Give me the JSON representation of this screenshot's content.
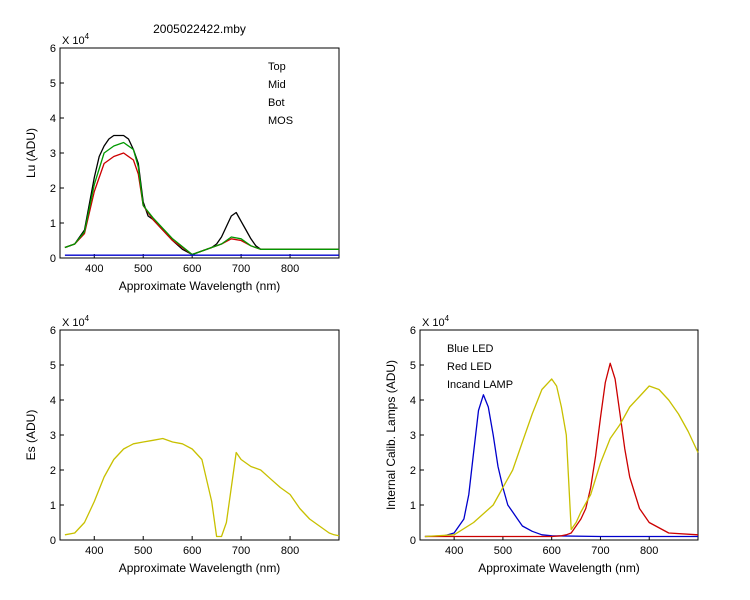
{
  "chart_data": [
    {
      "type": "line",
      "title": "2005022422.mby",
      "xlabel": "Approximate Wavelength (nm)",
      "ylabel": "Lu (ADU)",
      "y_multiplier": "X 10",
      "y_exponent": "4",
      "xlim": [
        330,
        900
      ],
      "ylim": [
        0,
        6
      ],
      "xticks": [
        400,
        500,
        600,
        700,
        800
      ],
      "yticks": [
        0,
        1,
        2,
        3,
        4,
        5,
        6
      ],
      "legend": "top-right",
      "series": [
        {
          "name": "Top",
          "color": "#000000",
          "x": [
            340,
            360,
            380,
            400,
            410,
            420,
            430,
            440,
            450,
            460,
            470,
            480,
            490,
            500,
            510,
            520,
            540,
            560,
            580,
            600,
            640,
            650,
            660,
            670,
            680,
            690,
            700,
            710,
            720,
            730,
            740,
            760,
            800,
            900
          ],
          "y": [
            0.3,
            0.4,
            0.8,
            2.3,
            2.9,
            3.2,
            3.4,
            3.5,
            3.5,
            3.5,
            3.4,
            3.1,
            2.7,
            1.6,
            1.2,
            1.1,
            0.8,
            0.5,
            0.25,
            0.1,
            0.3,
            0.4,
            0.6,
            0.9,
            1.2,
            1.3,
            1.05,
            0.8,
            0.55,
            0.35,
            0.25,
            0.25,
            0.25,
            0.25
          ]
        },
        {
          "name": "Mid",
          "color": "#cc0000",
          "x": [
            340,
            360,
            380,
            400,
            420,
            440,
            460,
            480,
            490,
            500,
            520,
            560,
            600,
            640,
            660,
            680,
            700,
            720,
            740,
            760,
            800,
            900
          ],
          "y": [
            0.3,
            0.4,
            0.7,
            1.9,
            2.7,
            2.9,
            3.0,
            2.8,
            2.4,
            1.5,
            1.1,
            0.5,
            0.1,
            0.3,
            0.4,
            0.55,
            0.5,
            0.35,
            0.25,
            0.25,
            0.25,
            0.25
          ]
        },
        {
          "name": "Bot",
          "color": "#009900",
          "x": [
            340,
            360,
            380,
            400,
            420,
            440,
            460,
            480,
            490,
            500,
            520,
            560,
            600,
            640,
            660,
            680,
            700,
            720,
            740,
            760,
            800,
            900
          ],
          "y": [
            0.3,
            0.4,
            0.75,
            2.1,
            3.0,
            3.2,
            3.3,
            3.1,
            2.6,
            1.5,
            1.15,
            0.55,
            0.1,
            0.3,
            0.4,
            0.6,
            0.55,
            0.35,
            0.25,
            0.25,
            0.25,
            0.25
          ]
        },
        {
          "name": "MOS",
          "color": "#0000cc",
          "x": [
            340,
            900
          ],
          "y": [
            0.08,
            0.08
          ]
        }
      ]
    },
    {
      "type": "line",
      "title": "",
      "xlabel": "Approximate Wavelength (nm)",
      "ylabel": "Es (ADU)",
      "y_multiplier": "X 10",
      "y_exponent": "4",
      "xlim": [
        330,
        900
      ],
      "ylim": [
        0,
        6
      ],
      "xticks": [
        400,
        500,
        600,
        700,
        800
      ],
      "yticks": [
        0,
        1,
        2,
        3,
        4,
        5,
        6
      ],
      "series": [
        {
          "name": "",
          "color": "#c8c000",
          "x": [
            340,
            360,
            380,
            400,
            420,
            440,
            460,
            480,
            500,
            520,
            540,
            560,
            580,
            600,
            620,
            640,
            650,
            660,
            670,
            680,
            690,
            700,
            720,
            740,
            760,
            780,
            800,
            820,
            840,
            860,
            880,
            890,
            900
          ],
          "y": [
            0.15,
            0.2,
            0.5,
            1.1,
            1.8,
            2.3,
            2.6,
            2.75,
            2.8,
            2.85,
            2.9,
            2.8,
            2.75,
            2.6,
            2.3,
            1.1,
            0.1,
            0.1,
            0.5,
            1.5,
            2.5,
            2.3,
            2.1,
            2.0,
            1.75,
            1.5,
            1.3,
            0.9,
            0.6,
            0.4,
            0.2,
            0.15,
            0.12
          ]
        }
      ]
    },
    {
      "type": "line",
      "title": "",
      "xlabel": "Approximate Wavelength (nm)",
      "ylabel": "Internal Calib. Lamps (ADU)",
      "y_multiplier": "X 10",
      "y_exponent": "4",
      "xlim": [
        330,
        900
      ],
      "ylim": [
        0,
        6
      ],
      "xticks": [
        400,
        500,
        600,
        700,
        800
      ],
      "yticks": [
        0,
        1,
        2,
        3,
        4,
        5,
        6
      ],
      "legend": "top-left",
      "series": [
        {
          "name": "Blue LED",
          "color": "#0000cc",
          "x": [
            340,
            380,
            400,
            420,
            430,
            440,
            450,
            460,
            470,
            480,
            490,
            500,
            510,
            520,
            530,
            540,
            560,
            580,
            600,
            700,
            800,
            900
          ],
          "y": [
            0.1,
            0.12,
            0.2,
            0.6,
            1.3,
            2.5,
            3.7,
            4.15,
            3.8,
            3.0,
            2.1,
            1.5,
            1.0,
            0.8,
            0.6,
            0.4,
            0.25,
            0.15,
            0.12,
            0.1,
            0.1,
            0.1
          ]
        },
        {
          "name": "Red LED",
          "color": "#cc0000",
          "x": [
            340,
            600,
            620,
            630,
            640,
            650,
            660,
            670,
            680,
            690,
            700,
            710,
            720,
            730,
            740,
            750,
            760,
            780,
            800,
            840,
            900
          ],
          "y": [
            0.1,
            0.1,
            0.12,
            0.15,
            0.2,
            0.4,
            0.6,
            0.9,
            1.5,
            2.4,
            3.5,
            4.5,
            5.05,
            4.6,
            3.6,
            2.6,
            1.8,
            0.9,
            0.5,
            0.2,
            0.15
          ]
        },
        {
          "name": "Incand LAMP",
          "color": "#c8c000",
          "x": [
            340,
            400,
            440,
            480,
            500,
            520,
            540,
            560,
            580,
            600,
            610,
            620,
            630,
            640,
            650,
            660,
            680,
            700,
            720,
            740,
            760,
            780,
            800,
            820,
            840,
            860,
            880,
            900
          ],
          "y": [
            0.1,
            0.15,
            0.5,
            1.0,
            1.5,
            2.0,
            2.8,
            3.6,
            4.3,
            4.6,
            4.4,
            3.8,
            3.0,
            0.3,
            0.5,
            0.8,
            1.3,
            2.2,
            2.9,
            3.3,
            3.8,
            4.1,
            4.4,
            4.3,
            4.0,
            3.6,
            3.1,
            2.5
          ]
        }
      ]
    }
  ]
}
